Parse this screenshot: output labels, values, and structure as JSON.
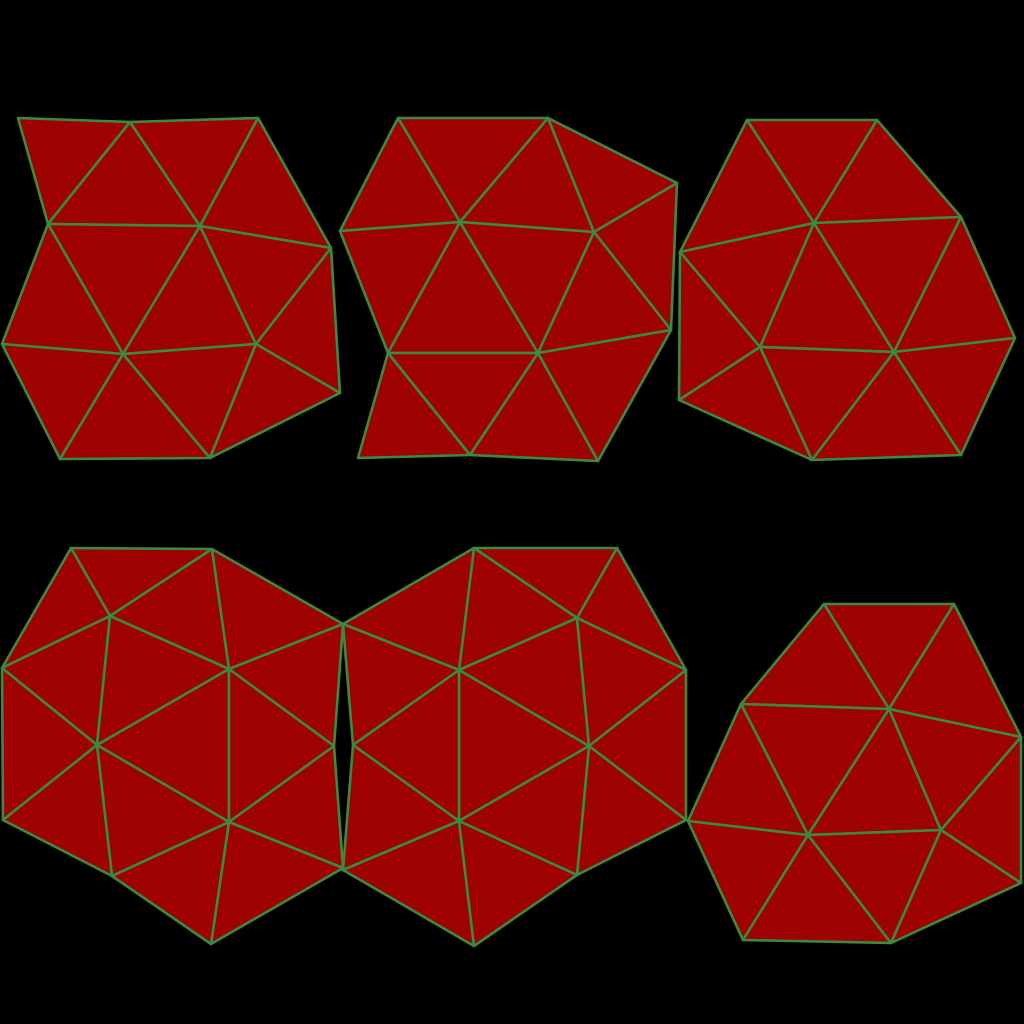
{
  "colors": {
    "background": "#000000",
    "fill": "#9e0203",
    "stroke": "#3a8a42"
  },
  "meshes": [
    {
      "name": "mesh-top-left"
    },
    {
      "name": "mesh-top-center"
    },
    {
      "name": "mesh-top-right"
    },
    {
      "name": "mesh-bottom-left"
    },
    {
      "name": "mesh-bottom-center"
    },
    {
      "name": "mesh-bottom-right"
    }
  ]
}
